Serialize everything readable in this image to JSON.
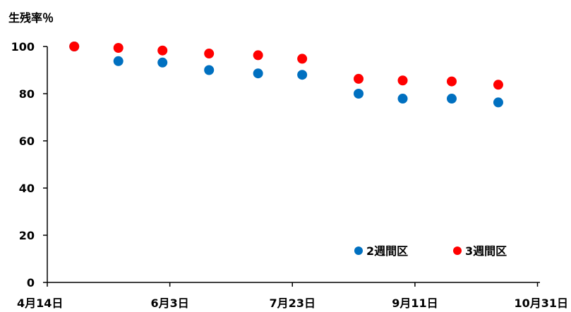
{
  "chart_data": {
    "type": "scatter",
    "title": "",
    "ylabel": "生残率％",
    "xlabel": "",
    "ylim": [
      0,
      100
    ],
    "yticks": [
      0,
      20,
      40,
      60,
      80,
      100
    ],
    "xlim": [
      "4/14",
      "11/1"
    ],
    "xtick_labels": [
      {
        "date": "4/14",
        "label": "4月14日"
      },
      {
        "date": "6/3",
        "label": "6月3日"
      },
      {
        "date": "7/23",
        "label": "7月23日"
      },
      {
        "date": "9/11",
        "label": "9月11日"
      },
      {
        "date": "10/31",
        "label": "10月31日"
      }
    ],
    "grid": false,
    "legend_position": "bottom-right",
    "series": [
      {
        "name": "2週間区",
        "color": "#0070c0",
        "points": [
          {
            "x": "4/25",
            "y": 100
          },
          {
            "x": "5/13",
            "y": 93.8
          },
          {
            "x": "5/31",
            "y": 93.2
          },
          {
            "x": "6/19",
            "y": 90
          },
          {
            "x": "7/9",
            "y": 88.6
          },
          {
            "x": "7/27",
            "y": 88
          },
          {
            "x": "8/19",
            "y": 80
          },
          {
            "x": "9/6",
            "y": 77.9
          },
          {
            "x": "9/26",
            "y": 77.9
          },
          {
            "x": "10/15",
            "y": 76.3
          }
        ]
      },
      {
        "name": "3週間区",
        "color": "#ff0000",
        "points": [
          {
            "x": "4/25",
            "y": 100
          },
          {
            "x": "5/13",
            "y": 99.4
          },
          {
            "x": "5/31",
            "y": 98.3
          },
          {
            "x": "6/19",
            "y": 97
          },
          {
            "x": "7/9",
            "y": 96.3
          },
          {
            "x": "7/27",
            "y": 94.8
          },
          {
            "x": "8/19",
            "y": 86.3
          },
          {
            "x": "9/6",
            "y": 85.6
          },
          {
            "x": "9/26",
            "y": 85.2
          },
          {
            "x": "10/15",
            "y": 83.8
          }
        ]
      }
    ]
  }
}
